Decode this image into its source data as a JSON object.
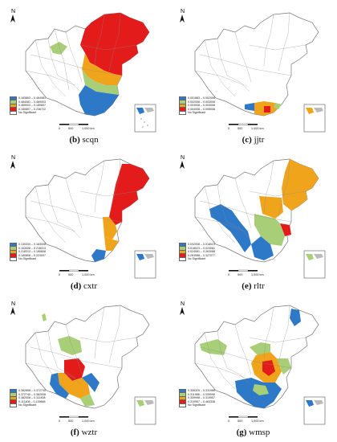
{
  "north_label": "N",
  "scale": {
    "zero": "0",
    "mid": "500",
    "end": "1,000 km"
  },
  "nodata_label": "No Significant",
  "colors": {
    "c1": "#2e78c8",
    "c2": "#a8cf78",
    "c3": "#f0a41c",
    "c4": "#e41b1b",
    "nodata": "#ffffff",
    "boundary": "#8a8a8a"
  },
  "panels": [
    {
      "id": "b",
      "letter": "(b)",
      "name": "scqn",
      "legend": [
        {
          "color": "#2e78c8",
          "label": "0.183863 – 0.464081"
        },
        {
          "color": "#a8cf78",
          "label": "0.464081 – 0.469003"
        },
        {
          "color": "#f0a41c",
          "label": "0.469003 – 0.180807"
        },
        {
          "color": "#e41b1b",
          "label": "0.180807 – 0.236722"
        }
      ]
    },
    {
      "id": "c",
      "letter": "(c)",
      "name": "jjtr",
      "legend": [
        {
          "color": "#2e78c8",
          "label": "0.001883 – 0.002008"
        },
        {
          "color": "#a8cf78",
          "label": "0.002008 – 0.003008"
        },
        {
          "color": "#f0a41c",
          "label": "0.003008 – 0.004008"
        },
        {
          "color": "#e41b1b",
          "label": "0.004008 – 0.005008"
        }
      ]
    },
    {
      "id": "d",
      "letter": "(d)",
      "name": "cxtr",
      "legend": [
        {
          "color": "#2e78c8",
          "label": "0.130334 – 0.163008"
        },
        {
          "color": "#a8cf78",
          "label": "0.163008 – 0.218313"
        },
        {
          "color": "#f0a41c",
          "label": "0.218313 – 0.180808"
        },
        {
          "color": "#e41b1b",
          "label": "0.180808 – 0.223007"
        }
      ]
    },
    {
      "id": "e",
      "letter": "(e)",
      "name": "rltr",
      "legend": [
        {
          "color": "#2e78c8",
          "label": "0.002008 – 0.018023"
        },
        {
          "color": "#a8cf78",
          "label": "0.018023 – 0.024081"
        },
        {
          "color": "#f0a41c",
          "label": "0.024081 – 0.263088"
        },
        {
          "color": "#e41b1b",
          "label": "0.263088 – 0.327077"
        }
      ]
    },
    {
      "id": "f",
      "letter": "(f)",
      "name": "wztr",
      "legend": [
        {
          "color": "#2e78c8",
          "label": "0.362808 – 0.372740"
        },
        {
          "color": "#a8cf78",
          "label": "0.372740 – 0.382008"
        },
        {
          "color": "#f0a41c",
          "label": "0.382008 – 0.111408"
        },
        {
          "color": "#e41b1b",
          "label": "0.111408 – 0.139668"
        }
      ]
    },
    {
      "id": "g",
      "letter": "(g)",
      "name": "wmsp",
      "legend": [
        {
          "color": "#2e78c8",
          "label": "0.306325 – 0.311988"
        },
        {
          "color": "#a8cf78",
          "label": "0.311988 – 0.339998"
        },
        {
          "color": "#f0a41c",
          "label": "0.339998 – 0.319957"
        },
        {
          "color": "#e41b1b",
          "label": "0.319957 – 0.463338"
        }
      ]
    }
  ]
}
